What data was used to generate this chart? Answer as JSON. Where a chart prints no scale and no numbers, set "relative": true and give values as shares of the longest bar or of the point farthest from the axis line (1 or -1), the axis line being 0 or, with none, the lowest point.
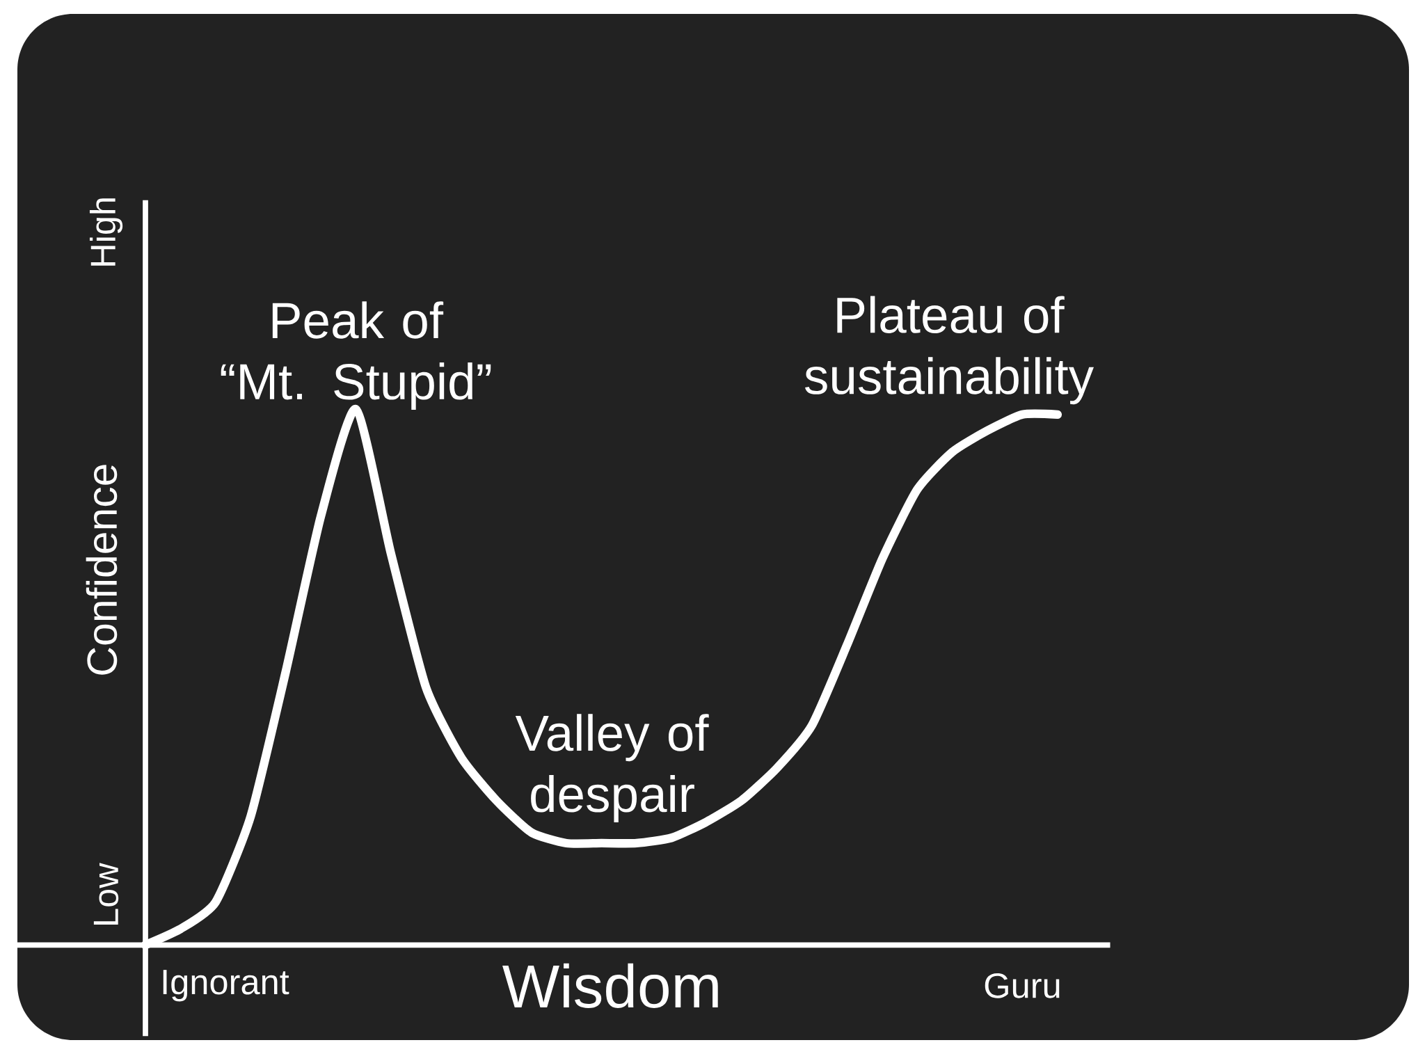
{
  "chart_data": {
    "type": "line",
    "xlabel": "Wisdom",
    "ylabel": "Confidence",
    "relative": true,
    "categories": [
      null,
      null,
      null,
      null,
      null,
      null,
      null,
      null,
      null,
      null,
      null,
      null,
      null,
      null,
      null,
      null,
      null,
      null,
      null,
      null,
      null,
      null,
      null,
      null,
      null,
      null,
      null
    ],
    "values": [
      0,
      0.03,
      0.08,
      0.24,
      0.51,
      0.8,
      1,
      0.73,
      0.48,
      0.35,
      0.27,
      0.21,
      0.19,
      0.19,
      0.19,
      0.2,
      0.23,
      0.27,
      0.33,
      0.41,
      0.56,
      0.72,
      0.85,
      0.92,
      0.96,
      0.99,
      0.99
    ],
    "color": "#ffffff",
    "annotations": [
      "Peak of “Mt. Stupid”",
      "Valley of despair",
      "Plateau of sustainability",
      "Low",
      "High",
      "Ignorant",
      "Guru"
    ]
  }
}
